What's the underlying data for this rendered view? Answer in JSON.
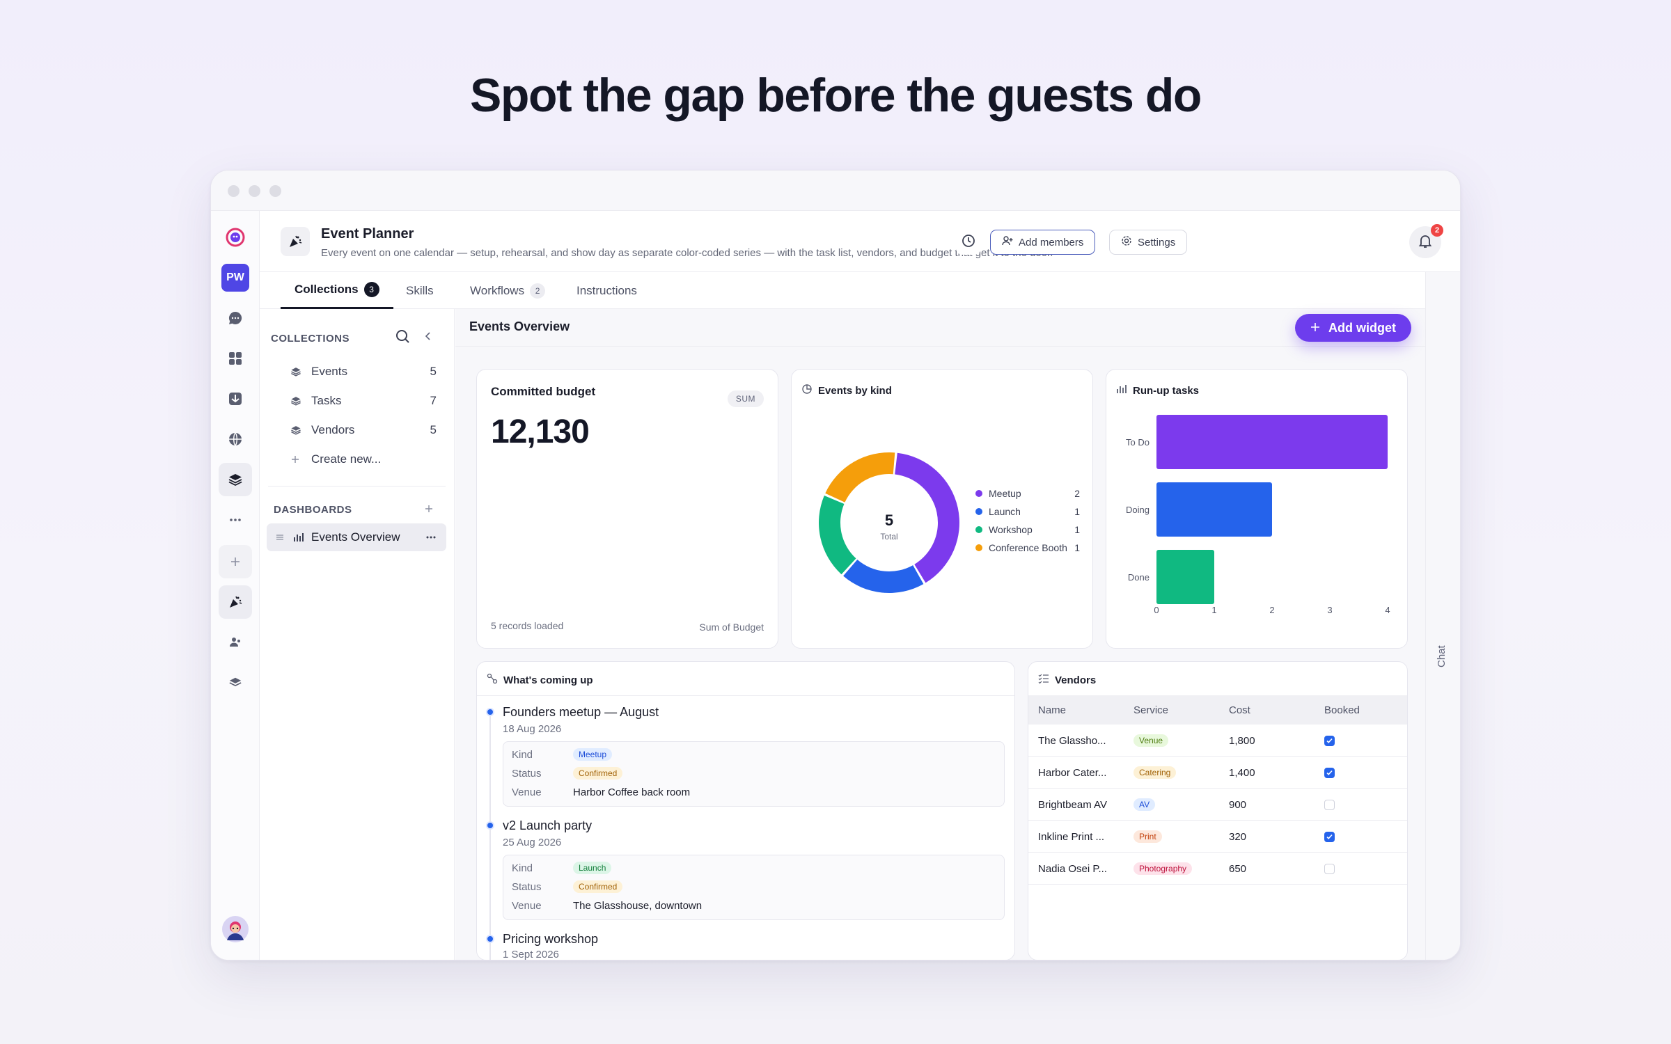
{
  "hero": {
    "title": "Spot the gap before the guests do"
  },
  "rail": {
    "workspace_initials": "PW"
  },
  "header": {
    "app_title": "Event Planner",
    "app_description": "Every event on one calendar — setup, rehearsal, and show day as separate color-coded series — with the task list, vendors, and budget that get it to the door.",
    "add_members_label": "Add members",
    "settings_label": "Settings",
    "notification_count": "2"
  },
  "tabs": [
    {
      "label": "Collections",
      "count": "3"
    },
    {
      "label": "Skills",
      "count": ""
    },
    {
      "label": "Workflows",
      "count": "2"
    },
    {
      "label": "Instructions",
      "count": ""
    }
  ],
  "chat_label": "Chat",
  "collections": {
    "heading": "COLLECTIONS",
    "items": [
      {
        "label": "Events",
        "count": "5"
      },
      {
        "label": "Tasks",
        "count": "7"
      },
      {
        "label": "Vendors",
        "count": "5"
      }
    ],
    "create_label": "Create new...",
    "dashboards_heading": "DASHBOARDS",
    "dashboard_item": "Events Overview"
  },
  "content": {
    "title": "Events Overview",
    "add_widget_label": "Add widget"
  },
  "budget_card": {
    "title": "Committed budget",
    "pill": "SUM",
    "value": "12,130",
    "footer_left": "5 records loaded",
    "footer_right": "Sum of Budget"
  },
  "kind_card": {
    "title": "Events by kind",
    "center_value": "5",
    "center_label": "Total"
  },
  "tasks_card": {
    "title": "Run-up tasks"
  },
  "chart_data": [
    {
      "type": "pie",
      "title": "Events by kind",
      "categories": [
        "Meetup",
        "Launch",
        "Workshop",
        "Conference Booth"
      ],
      "values": [
        2,
        1,
        1,
        1
      ],
      "colors": [
        "#7c3aed",
        "#2563eb",
        "#10b981",
        "#f59e0b"
      ],
      "donut": true,
      "legend": "right"
    },
    {
      "type": "bar",
      "orientation": "horizontal",
      "title": "Run-up tasks",
      "categories": [
        "To Do",
        "Doing",
        "Done"
      ],
      "values": [
        4,
        2,
        1
      ],
      "colors": [
        "#7c3aed",
        "#2563eb",
        "#10b981"
      ],
      "xlim": [
        0,
        4
      ],
      "xticks": [
        "0",
        "1",
        "2",
        "3",
        "4"
      ],
      "grid": false
    }
  ],
  "upcoming": {
    "title": "What's coming up",
    "labels": {
      "kind": "Kind",
      "status": "Status",
      "venue": "Venue"
    },
    "events": [
      {
        "title": "Founders meetup — August",
        "date": "18 Aug 2026",
        "kind": "Meetup",
        "status": "Confirmed",
        "venue": "Harbor Coffee back room"
      },
      {
        "title": "v2 Launch party",
        "date": "25 Aug 2026",
        "kind": "Launch",
        "status": "Confirmed",
        "venue": "The Glasshouse, downtown"
      },
      {
        "title": "Pricing workshop",
        "date": "1 Sept 2026"
      }
    ]
  },
  "vendors": {
    "title": "Vendors",
    "columns": [
      "Name",
      "Service",
      "Cost",
      "Booked"
    ],
    "rows": [
      {
        "name": "The Glassho...",
        "service": "Venue",
        "cost": "1,800",
        "booked": true
      },
      {
        "name": "Harbor Cater...",
        "service": "Catering",
        "cost": "1,400",
        "booked": true
      },
      {
        "name": "Brightbeam AV",
        "service": "AV",
        "cost": "900",
        "booked": false
      },
      {
        "name": "Inkline Print ...",
        "service": "Print",
        "cost": "320",
        "booked": true
      },
      {
        "name": "Nadia Osei P...",
        "service": "Photography",
        "cost": "650",
        "booked": false
      }
    ],
    "chip_colors": {
      "Venue": [
        "#e8f8dc",
        "#4d7c0f"
      ],
      "Catering": [
        "#fdf1d6",
        "#a16207"
      ],
      "AV": [
        "#e0ecff",
        "#1d4ed8"
      ],
      "Print": [
        "#fde8dc",
        "#c2410c"
      ],
      "Photography": [
        "#fde2ea",
        "#be123c"
      ]
    }
  },
  "chip_styles": {
    "Meetup": [
      "#e0ecff",
      "#1d4ed8"
    ],
    "Launch": [
      "#dcf5e7",
      "#15803d"
    ],
    "Confirmed": [
      "#fdf1d6",
      "#a16207"
    ]
  }
}
